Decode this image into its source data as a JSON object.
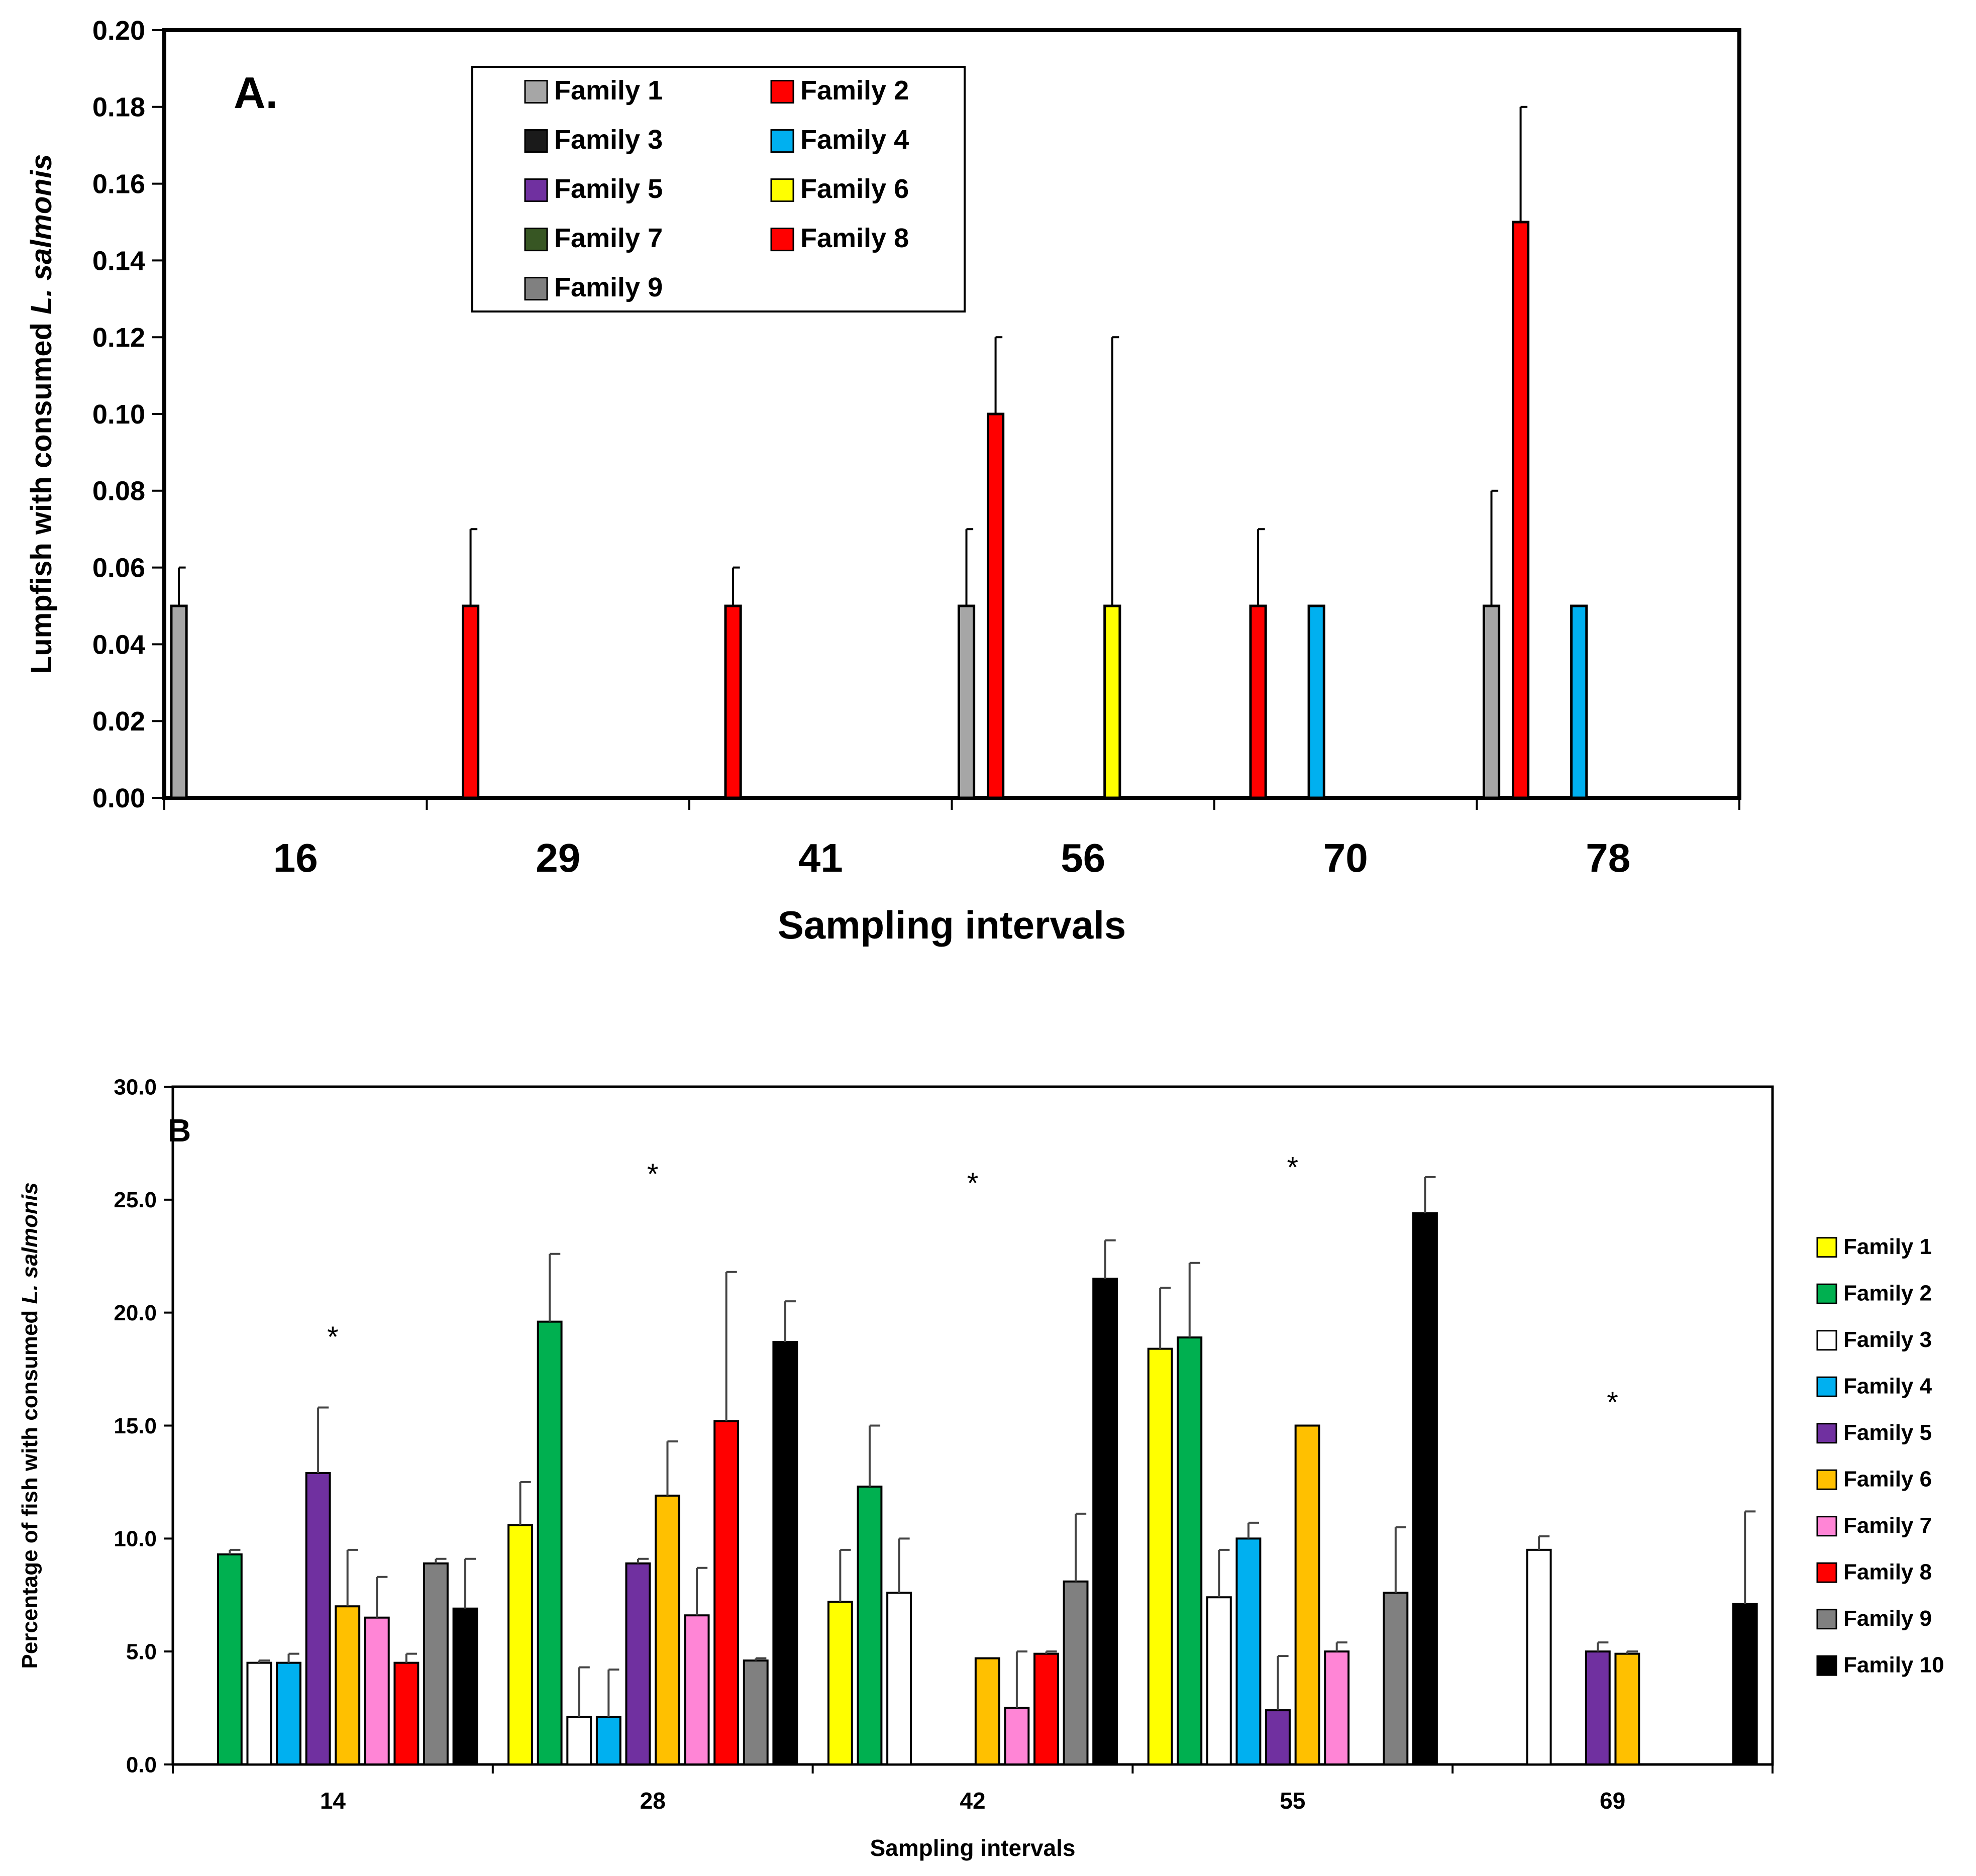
{
  "chart_data": [
    {
      "type": "bar",
      "panel_label": "A.",
      "title": "",
      "xlabel": "Sampling intervals",
      "ylabel_prefix": "Lumpfish with consumed ",
      "ylabel_italic": "L. salmonis",
      "categories": [
        "16",
        "29",
        "41",
        "56",
        "70",
        "78"
      ],
      "ylim": [
        0,
        0.2
      ],
      "yticks": [
        "0.00",
        "0.02",
        "0.04",
        "0.06",
        "0.08",
        "0.10",
        "0.12",
        "0.14",
        "0.16",
        "0.18",
        "0.20"
      ],
      "legend_position": "top-center",
      "series": [
        {
          "name": "Family 1",
          "color": "#a6a6a6",
          "values": [
            0.05,
            0,
            0,
            0.05,
            0,
            0.05
          ],
          "errors": [
            0.01,
            0,
            0,
            0.02,
            0,
            0.03
          ]
        },
        {
          "name": "Family 2",
          "color": "#ff0000",
          "values": [
            0,
            0.05,
            0.05,
            0.1,
            0.05,
            0.15
          ],
          "errors": [
            0,
            0.02,
            0.01,
            0.02,
            0.02,
            0.03
          ]
        },
        {
          "name": "Family 3",
          "color": "#1a1a1a",
          "values": [
            0,
            0,
            0,
            0,
            0,
            0
          ],
          "errors": [
            0,
            0,
            0,
            0,
            0,
            0
          ]
        },
        {
          "name": "Family 4",
          "color": "#00b0f0",
          "values": [
            0,
            0,
            0,
            0,
            0.05,
            0.05
          ],
          "errors": [
            0,
            0,
            0,
            0,
            0,
            0
          ]
        },
        {
          "name": "Family 5",
          "color": "#7030a0",
          "values": [
            0,
            0,
            0,
            0,
            0,
            0
          ],
          "errors": [
            0,
            0,
            0,
            0,
            0,
            0
          ]
        },
        {
          "name": "Family 6",
          "color": "#ffff00",
          "values": [
            0,
            0,
            0,
            0.05,
            0,
            0
          ],
          "errors": [
            0,
            0,
            0,
            0.07,
            0,
            0
          ]
        },
        {
          "name": "Family 7",
          "color": "#375623",
          "values": [
            0,
            0,
            0,
            0,
            0,
            0
          ],
          "errors": [
            0,
            0,
            0,
            0,
            0,
            0
          ]
        },
        {
          "name": "Family 8",
          "color": "#ff0000",
          "values": [
            0,
            0,
            0,
            0,
            0,
            0
          ],
          "errors": [
            0,
            0,
            0,
            0,
            0,
            0
          ]
        },
        {
          "name": "Family 9",
          "color": "#808080",
          "values": [
            0,
            0,
            0,
            0,
            0,
            0
          ],
          "errors": [
            0,
            0,
            0,
            0,
            0,
            0
          ]
        }
      ]
    },
    {
      "type": "bar",
      "panel_label": "B",
      "title": "",
      "xlabel": "Sampling intervals",
      "ylabel_prefix": "Percentage of fish with consumed ",
      "ylabel_italic": "L. salmonis",
      "categories": [
        "14",
        "28",
        "42",
        "55",
        "69"
      ],
      "ylim": [
        0,
        30
      ],
      "yticks": [
        "0.0",
        "5.0",
        "10.0",
        "15.0",
        "20.0",
        "25.0",
        "30.0"
      ],
      "legend_position": "right",
      "significance_marker": "*",
      "significance_y": [
        19.0,
        26.2,
        25.8,
        26.5,
        16.1
      ],
      "series": [
        {
          "name": "Family 1",
          "color": "#ffff00",
          "values": [
            0,
            10.6,
            7.2,
            18.4,
            0
          ],
          "errors": [
            0,
            1.9,
            2.3,
            2.7,
            0
          ]
        },
        {
          "name": "Family 2",
          "color": "#00b050",
          "values": [
            9.3,
            19.6,
            12.3,
            18.9,
            0
          ],
          "errors": [
            0.2,
            3.0,
            2.7,
            3.3,
            0
          ]
        },
        {
          "name": "Family 3",
          "color": "#ffffff",
          "values": [
            4.5,
            2.1,
            7.6,
            7.4,
            9.5
          ],
          "errors": [
            0.1,
            2.2,
            2.4,
            2.1,
            0.6
          ]
        },
        {
          "name": "Family 4",
          "color": "#00b0f0",
          "values": [
            4.5,
            2.1,
            0,
            10.0,
            0
          ],
          "errors": [
            0.4,
            2.1,
            0,
            0.7,
            0
          ]
        },
        {
          "name": "Family 5",
          "color": "#7030a0",
          "values": [
            12.9,
            8.9,
            0,
            2.4,
            5.0
          ],
          "errors": [
            2.9,
            0.2,
            0,
            2.4,
            0.4
          ]
        },
        {
          "name": "Family 6",
          "color": "#ffc000",
          "values": [
            7.0,
            11.9,
            4.7,
            15.0,
            4.9
          ],
          "errors": [
            2.5,
            2.4,
            0,
            0,
            0.1
          ]
        },
        {
          "name": "Family 7",
          "color": "#ff85d6",
          "values": [
            6.5,
            6.6,
            2.5,
            5.0,
            0
          ],
          "errors": [
            1.8,
            2.1,
            2.5,
            0.4,
            0
          ]
        },
        {
          "name": "Family 8",
          "color": "#ff0000",
          "values": [
            4.5,
            15.2,
            4.9,
            0,
            0
          ],
          "errors": [
            0.4,
            6.6,
            0.1,
            0,
            0
          ]
        },
        {
          "name": "Family 9",
          "color": "#808080",
          "values": [
            8.9,
            4.6,
            8.1,
            7.6,
            0
          ],
          "errors": [
            0.2,
            0.1,
            3.0,
            2.9,
            0
          ]
        },
        {
          "name": "Family 10",
          "color": "#000000",
          "values": [
            6.9,
            18.7,
            21.5,
            24.4,
            7.1
          ],
          "errors": [
            2.2,
            1.8,
            1.7,
            1.6,
            4.1
          ]
        }
      ]
    }
  ]
}
